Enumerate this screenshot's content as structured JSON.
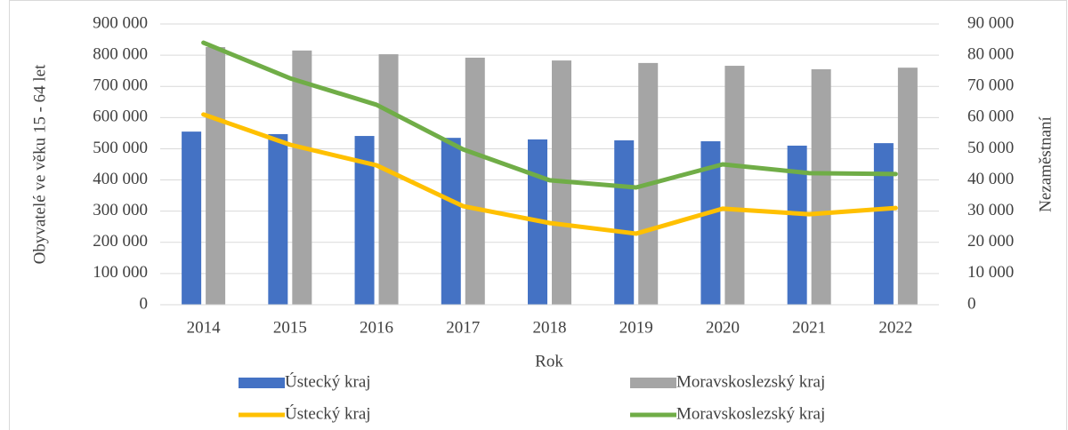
{
  "chart_data": {
    "type": "bar",
    "categories": [
      "2014",
      "2015",
      "2016",
      "2017",
      "2018",
      "2019",
      "2020",
      "2021",
      "2022"
    ],
    "series": [
      {
        "name": "Ústecký kraj",
        "type": "bar",
        "color": "#4472c4",
        "values": [
          555000,
          547000,
          541000,
          535000,
          530000,
          527000,
          524000,
          510000,
          518000
        ]
      },
      {
        "name": "Moravskoslezský kraj",
        "type": "bar",
        "color": "#a5a5a5",
        "values": [
          826000,
          815000,
          803000,
          792000,
          783000,
          775000,
          766000,
          755000,
          760000
        ]
      },
      {
        "name": "Ústecký kraj",
        "type": "line",
        "axis": "y2",
        "color": "#ffc000",
        "values": [
          61000,
          51300,
          44700,
          31600,
          26200,
          22800,
          30800,
          29000,
          31000
        ]
      },
      {
        "name": "Moravskoslezský kraj",
        "type": "line",
        "axis": "y2",
        "color": "#70ad47",
        "values": [
          84000,
          72600,
          64100,
          49800,
          39900,
          37600,
          45000,
          42200,
          41900
        ]
      }
    ],
    "x_label": "Rok",
    "y_label": "Obyvatelé ve věku 15 - 64 let",
    "y2_label": "Nezaměstnaní",
    "ylim": [
      0,
      900000
    ],
    "yticks": [
      0,
      {
        "value": 100000,
        "label": "100 000"
      },
      {
        "value": 200000,
        "label": "200 000"
      },
      {
        "value": 300000,
        "label": "300 000"
      },
      {
        "value": 400000,
        "label": "400 000"
      },
      {
        "value": 500000,
        "label": "500 000"
      },
      {
        "value": 600000,
        "label": "600 000"
      },
      {
        "value": 700000,
        "label": "700 000"
      },
      {
        "value": 800000,
        "label": "800 000"
      },
      {
        "value": 900000,
        "label": "900 000"
      }
    ],
    "y2lim": [
      0,
      90000
    ],
    "y2ticks": [
      0,
      {
        "value": 10000,
        "label": "10 000"
      },
      {
        "value": 20000,
        "label": "20 000"
      },
      {
        "value": 30000,
        "label": "30 000"
      },
      {
        "value": 40000,
        "label": "40 000"
      },
      {
        "value": 50000,
        "label": "50 000"
      },
      {
        "value": 60000,
        "label": "60 000"
      },
      {
        "value": 70000,
        "label": "70 000"
      },
      {
        "value": 80000,
        "label": "80 000"
      },
      {
        "value": 90000,
        "label": "90 000"
      }
    ],
    "grid": true,
    "legend": "bottom"
  }
}
